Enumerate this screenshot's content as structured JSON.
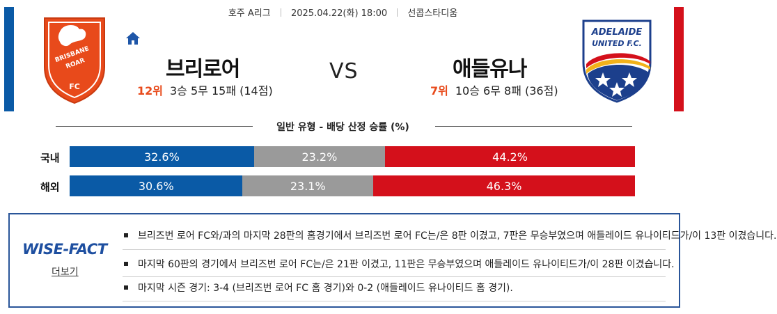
{
  "match": {
    "league": "호주 A리그",
    "datetime": "2025.04.22(화) 18:00",
    "venue": "선콥스타디움",
    "vs_label": "VS"
  },
  "home": {
    "name": "브리로어",
    "rank": "12위",
    "record": "3승 5무 15패 (14점)",
    "crest_text_1": "BRISBANE",
    "crest_text_2": "ROAR",
    "crest_text_3": "FC",
    "color": "#e84a1b"
  },
  "away": {
    "name": "애들유나",
    "rank": "7위",
    "record": "10승 6무 8패 (36점)",
    "crest_text_1": "ADELAIDE",
    "crest_text_2": "UNITED F.C.",
    "color": "#d4101b"
  },
  "odds_section": {
    "title": "일반 유형 - 배당 산정 승률 (%)",
    "rows": [
      {
        "label": "국내",
        "home": "32.6%",
        "draw": "23.2%",
        "away": "44.2%",
        "home_pct": 32.6,
        "draw_pct": 23.2,
        "away_pct": 44.2
      },
      {
        "label": "해외",
        "home": "30.6%",
        "draw": "23.1%",
        "away": "46.3%",
        "home_pct": 30.6,
        "draw_pct": 23.1,
        "away_pct": 46.3
      }
    ]
  },
  "wise_fact": {
    "logo": "WISE-FACT",
    "more": "더보기",
    "items": [
      "브리즈번 로어 FC와/과의 마지막 28판의 홈경기에서 브리즈번 로어 FC는/은 8판 이겼고, 7판은 무승부였으며 애들레이드 유나이티드가/이 13판 이겼습니다.",
      "마지막 60판의 경기에서 브리즈번 로어 FC는/은 21판 이겼고, 11판은 무승부였으며 애들레이드 유나이티드가/이 28판 이겼습니다.",
      "마지막 시즌 경기: 3-4 (브리즈번 로어 FC 홈 경기)와 0-2 (애들레이드 유나이티드 홈 경기)."
    ]
  },
  "colors": {
    "home_blue": "#0a5aa6",
    "draw_gray": "#9a9a9a",
    "away_red": "#d4101b",
    "rank_orange": "#e84a1b"
  }
}
